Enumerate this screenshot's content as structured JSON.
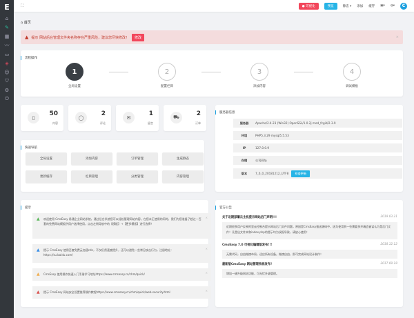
{
  "topbar": {
    "visual": "可视化",
    "preview": "预览",
    "static": "静态 ▾",
    "add": "添加",
    "cache": "缓存",
    "avatar": "C"
  },
  "breadcrumb": "首页",
  "alert": {
    "text": "提示 网站后台管理文件夹名称存在严重风险，建议您尽快修改！",
    "button": "修改"
  },
  "flow": {
    "title": "流程操作",
    "steps": [
      {
        "n": "1",
        "label": "全局设置"
      },
      {
        "n": "2",
        "label": "配置栏目"
      },
      {
        "n": "3",
        "label": "添加内容"
      },
      {
        "n": "4",
        "label": "调试模板"
      }
    ]
  },
  "stats": [
    {
      "value": "50",
      "label": "内容",
      "icon": "file-icon"
    },
    {
      "value": "2",
      "label": "评论",
      "icon": "comment-icon"
    },
    {
      "value": "1",
      "label": "留言",
      "icon": "mail-icon"
    },
    {
      "value": "2",
      "label": "订单",
      "icon": "cart-icon"
    }
  ],
  "quicknav": {
    "title": "快速导航",
    "items": [
      "全局设置",
      "添加内容",
      "订单管理",
      "生成静态",
      "更新缓存",
      "栏目管理",
      "分类管理",
      "内容管理"
    ]
  },
  "server": {
    "title": "服务器信息",
    "rows": [
      {
        "k": "服务器",
        "v": "Apache/2.4.23 (Win32) OpenSSL/1.0.2j mod_fcgid/2.3.9"
      },
      {
        "k": "环境",
        "v": "PHP5.3.29 mysql5.5.53"
      },
      {
        "k": "IP",
        "v": "127.0.0.9"
      },
      {
        "k": "存储",
        "v": "公司网址"
      },
      {
        "k": "版本",
        "v": "7_0_0_20181212_UTF8"
      }
    ],
    "check": "检查更新"
  },
  "tips": {
    "title": "提示",
    "items": [
      {
        "text": "欢迎使用 CmsEasy 易通企业网站系统，通过后台系统您可以轻松管理网站内容。在您未正使用的同时，我们为您准备了超过一百套的免费网站模板供用户选择使用，点击左侧导航中的【模板】→【更多模板】进行选择！",
        "color": "#5cb85c"
      },
      {
        "text": "提示 CmsEasy 使用百度免费云加速cdn，不仅仍然速度提升，还可以避免一些常见攻击行为，注册地址：https://su.baidu.com/",
        "color": "#3a8ee6"
      },
      {
        "text": "CmsEasy 使用操作快速入门手册学习地址https://www.cmseasy.cn/chm/quick/",
        "color": "#f0ad4e"
      },
      {
        "text": "提示 CmsEasy 网站安全设置推荐操作教程https://www.cmseasy.cn/chm/quick/web-security.html",
        "color": "#d9534f"
      }
    ]
  },
  "news": {
    "title": "官方公告",
    "items": [
      {
        "title": "关于近期部署云主机提示网站后门声明!!!",
        "date": "2019.03.21",
        "body": "近期很多用户反映阿里云控制台提示网站后门文件问题，原因是CmsEasy推送源码中，因为使用到一些需要多开端会被误认为是后门文件！凡是出文件夹和index.php的提示均为误报导致，请放心使用！"
      },
      {
        "title": "CmsEasy 7.0 可视化编辑版发布!!!",
        "date": "2018.12.12",
        "body": "无需代码，自由拖拽布局，适应所有设备。拖拽自由，即可完成网站设计制作！"
      },
      {
        "title": "最新版CmsEasy 网站管理系统发布！",
        "date": "2017.09.18",
        "body": "增加一键升级网站功能，可无忧升级管理。"
      }
    ]
  }
}
